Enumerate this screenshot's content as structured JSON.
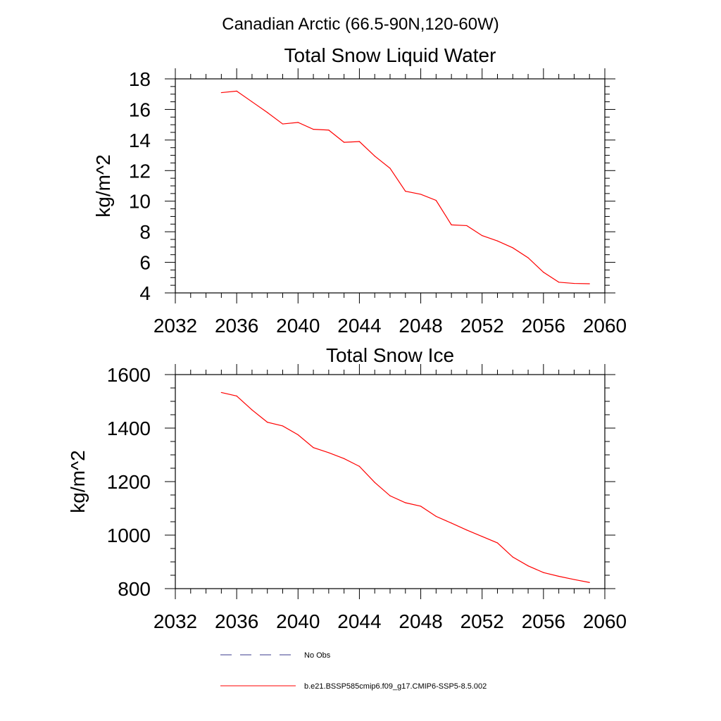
{
  "page": {
    "title": "Canadian Arctic (66.5-90N,120-60W)"
  },
  "legend": {
    "items": [
      {
        "label": "No Obs",
        "color": "#3a3a8c",
        "style": "dashed"
      },
      {
        "label": "b.e21.BSSP585cmip6.f09_g17.CMIP6-SSP5-8.5.002",
        "color": "#ff0000",
        "style": "solid"
      }
    ]
  },
  "chart_data": [
    {
      "type": "line",
      "title": "Total Snow Liquid Water",
      "xlabel": "",
      "ylabel": "kg/m^2",
      "xlim": [
        2032,
        2060
      ],
      "ylim": [
        4,
        18
      ],
      "x_ticks": [
        2032,
        2036,
        2040,
        2044,
        2048,
        2052,
        2056,
        2060
      ],
      "y_ticks": [
        4,
        6,
        8,
        10,
        12,
        14,
        16,
        18
      ],
      "grid": false,
      "series": [
        {
          "name": "b.e21.BSSP585cmip6.f09_g17.CMIP6-SSP5-8.5.002",
          "color": "#ff0000",
          "x": [
            2035,
            2036,
            2037,
            2038,
            2039,
            2040,
            2041,
            2042,
            2043,
            2044,
            2045,
            2046,
            2047,
            2048,
            2049,
            2050,
            2051,
            2052,
            2053,
            2054,
            2055,
            2056,
            2057,
            2058,
            2059
          ],
          "values": [
            17.1,
            17.2,
            16.5,
            15.8,
            15.05,
            15.15,
            14.7,
            14.65,
            13.85,
            13.9,
            12.95,
            12.15,
            10.65,
            10.45,
            10.05,
            8.45,
            8.4,
            7.75,
            7.4,
            6.95,
            6.3,
            5.35,
            4.7,
            4.62,
            4.6
          ]
        }
      ]
    },
    {
      "type": "line",
      "title": "Total Snow Ice",
      "xlabel": "",
      "ylabel": "kg/m^2",
      "xlim": [
        2032,
        2060
      ],
      "ylim": [
        800,
        1600
      ],
      "x_ticks": [
        2032,
        2036,
        2040,
        2044,
        2048,
        2052,
        2056,
        2060
      ],
      "y_ticks": [
        800,
        1000,
        1200,
        1400,
        1600
      ],
      "grid": false,
      "series": [
        {
          "name": "b.e21.BSSP585cmip6.f09_g17.CMIP6-SSP5-8.5.002",
          "color": "#ff0000",
          "x": [
            2035,
            2036,
            2037,
            2038,
            2039,
            2040,
            2041,
            2042,
            2043,
            2044,
            2045,
            2046,
            2047,
            2048,
            2049,
            2050,
            2051,
            2052,
            2053,
            2054,
            2055,
            2056,
            2057,
            2058,
            2059
          ],
          "values": [
            1533,
            1520,
            1468,
            1422,
            1408,
            1375,
            1327,
            1308,
            1286,
            1257,
            1197,
            1147,
            1121,
            1108,
            1070,
            1045,
            1019,
            995,
            971,
            918,
            885,
            860,
            846,
            834,
            823
          ]
        }
      ]
    }
  ]
}
